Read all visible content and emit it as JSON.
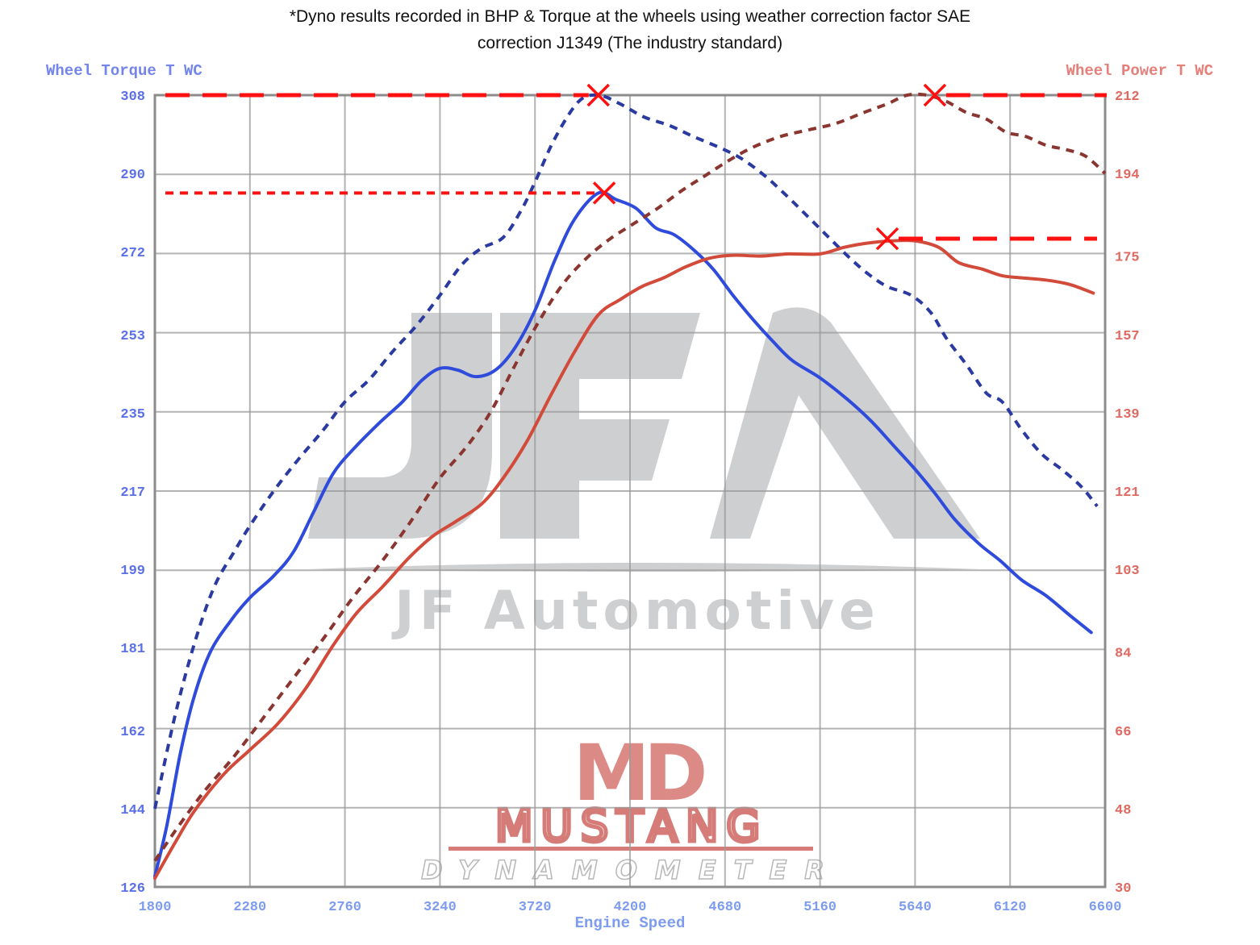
{
  "header": {
    "title_line1": "*Dyno results recorded in BHP & Torque at the wheels using weather correction factor SAE",
    "title_line2": "correction J1349 (The industry standard)"
  },
  "axes": {
    "left_title": "Wheel Torque T WC",
    "right_title": "Wheel Power T WC",
    "x_title": "Engine Speed"
  },
  "watermarks": {
    "jfa_logo": "JFA",
    "jf_text": "JF Automotive",
    "md_logo": "MD",
    "mustang_text": "MUSTANG",
    "dynamometer_text": "DYNAMOMETER"
  },
  "colors": {
    "torque_after": "#2f4bdc",
    "torque_before": "#2a3aa0",
    "power_after": "#d24a3a",
    "power_before": "#8b3530",
    "markers": "#ff1010",
    "grid": "#9a9a9a",
    "left_ticks": "#5b6fe8",
    "right_ticks": "#e06a62",
    "x_ticks": "#7d9bef"
  },
  "chart_data": {
    "type": "line",
    "title": "*Dyno results recorded in BHP & Torque at the wheels using weather correction factor SAE correction J1349 (The industry standard)",
    "xlabel": "Engine Speed",
    "ylabel": "Wheel Torque T WC",
    "y2label": "Wheel Power T WC",
    "xlim": [
      1800,
      6600
    ],
    "ylim": [
      126,
      308
    ],
    "y2lim": [
      30,
      212
    ],
    "x_ticks": [
      1800,
      2280,
      2760,
      3240,
      3720,
      4200,
      4680,
      5160,
      5640,
      6120,
      6600
    ],
    "y_ticks": [
      126,
      144,
      162,
      181,
      199,
      217,
      235,
      253,
      272,
      290,
      308
    ],
    "y2_ticks": [
      30,
      48,
      66,
      84,
      103,
      121,
      139,
      157,
      175,
      194,
      212
    ],
    "grid": true,
    "series": [
      {
        "name": "Wheel Torque (solid, blue)",
        "axis": "left",
        "style": "solid",
        "points": [
          [
            1800,
            128.5
          ],
          [
            1860,
            140
          ],
          [
            1930,
            157
          ],
          [
            2000,
            170
          ],
          [
            2080,
            180
          ],
          [
            2180,
            187
          ],
          [
            2280,
            192.5
          ],
          [
            2400,
            197.5
          ],
          [
            2500,
            203
          ],
          [
            2600,
            212
          ],
          [
            2700,
            221
          ],
          [
            2800,
            226.5
          ],
          [
            2930,
            232.5
          ],
          [
            3050,
            237.5
          ],
          [
            3150,
            242.5
          ],
          [
            3240,
            245.2
          ],
          [
            3330,
            244.8
          ],
          [
            3420,
            243.3
          ],
          [
            3520,
            244.8
          ],
          [
            3620,
            250
          ],
          [
            3720,
            258.5
          ],
          [
            3820,
            270
          ],
          [
            3920,
            279.5
          ],
          [
            4040,
            285.5
          ],
          [
            4130,
            284
          ],
          [
            4230,
            282
          ],
          [
            4330,
            277.5
          ],
          [
            4420,
            276
          ],
          [
            4520,
            272.5
          ],
          [
            4620,
            268
          ],
          [
            4720,
            262
          ],
          [
            4820,
            256.5
          ],
          [
            4920,
            251.5
          ],
          [
            5020,
            247
          ],
          [
            5160,
            243
          ],
          [
            5300,
            238
          ],
          [
            5420,
            233
          ],
          [
            5540,
            227
          ],
          [
            5640,
            222
          ],
          [
            5740,
            216.5
          ],
          [
            5840,
            210.5
          ],
          [
            5960,
            205
          ],
          [
            6070,
            201
          ],
          [
            6180,
            196.5
          ],
          [
            6300,
            193
          ],
          [
            6420,
            188.5
          ],
          [
            6530,
            184.5
          ]
        ]
      },
      {
        "name": "Wheel Torque (dashed, dark blue)",
        "axis": "left",
        "style": "dashed",
        "points": [
          [
            1800,
            144
          ],
          [
            1900,
            165
          ],
          [
            2000,
            182
          ],
          [
            2100,
            195
          ],
          [
            2200,
            203
          ],
          [
            2280,
            209
          ],
          [
            2400,
            217
          ],
          [
            2520,
            224
          ],
          [
            2650,
            231
          ],
          [
            2760,
            237.5
          ],
          [
            2880,
            242.5
          ],
          [
            3000,
            249
          ],
          [
            3120,
            255
          ],
          [
            3240,
            262
          ],
          [
            3350,
            269
          ],
          [
            3450,
            272.8
          ],
          [
            3560,
            275.3
          ],
          [
            3650,
            281.5
          ],
          [
            3720,
            288
          ],
          [
            3820,
            298
          ],
          [
            3940,
            306.5
          ],
          [
            4040,
            308
          ],
          [
            4150,
            306
          ],
          [
            4270,
            303
          ],
          [
            4400,
            301
          ],
          [
            4520,
            298.5
          ],
          [
            4650,
            296
          ],
          [
            4760,
            293.5
          ],
          [
            4880,
            289.5
          ],
          [
            5000,
            284.5
          ],
          [
            5100,
            280
          ],
          [
            5200,
            275.5
          ],
          [
            5300,
            271
          ],
          [
            5400,
            267
          ],
          [
            5500,
            264
          ],
          [
            5620,
            262
          ],
          [
            5720,
            258
          ],
          [
            5800,
            252
          ],
          [
            5900,
            246
          ],
          [
            6000,
            239.5
          ],
          [
            6080,
            237.5
          ],
          [
            6180,
            231
          ],
          [
            6280,
            225.5
          ],
          [
            6380,
            222
          ],
          [
            6480,
            218
          ],
          [
            6560,
            213.5
          ]
        ]
      },
      {
        "name": "Wheel Power (solid, red)",
        "axis": "right",
        "style": "solid",
        "points": [
          [
            1800,
            32
          ],
          [
            1900,
            40
          ],
          [
            2000,
            47.5
          ],
          [
            2150,
            56
          ],
          [
            2280,
            61.5
          ],
          [
            2420,
            67.5
          ],
          [
            2560,
            75.5
          ],
          [
            2700,
            85.5
          ],
          [
            2820,
            93
          ],
          [
            2950,
            99
          ],
          [
            3080,
            105.5
          ],
          [
            3200,
            110.5
          ],
          [
            3320,
            114
          ],
          [
            3450,
            118
          ],
          [
            3560,
            124
          ],
          [
            3680,
            132.5
          ],
          [
            3800,
            143
          ],
          [
            3920,
            153
          ],
          [
            4040,
            161.5
          ],
          [
            4150,
            165
          ],
          [
            4260,
            168
          ],
          [
            4370,
            170
          ],
          [
            4480,
            172.5
          ],
          [
            4600,
            174.5
          ],
          [
            4720,
            175.2
          ],
          [
            4860,
            175
          ],
          [
            5000,
            175.5
          ],
          [
            5160,
            175.5
          ],
          [
            5280,
            177
          ],
          [
            5400,
            178
          ],
          [
            5520,
            178.5
          ],
          [
            5640,
            178.5
          ],
          [
            5760,
            177
          ],
          [
            5860,
            173.5
          ],
          [
            5980,
            172
          ],
          [
            6080,
            170.5
          ],
          [
            6180,
            170
          ],
          [
            6300,
            169.5
          ],
          [
            6420,
            168.5
          ],
          [
            6540,
            166.5
          ]
        ]
      },
      {
        "name": "Wheel Power (dashed, dark red)",
        "axis": "right",
        "style": "dashed",
        "points": [
          [
            1800,
            36
          ],
          [
            1920,
            44
          ],
          [
            2050,
            52
          ],
          [
            2200,
            60
          ],
          [
            2350,
            69
          ],
          [
            2500,
            78
          ],
          [
            2650,
            87
          ],
          [
            2800,
            96.5
          ],
          [
            2950,
            105
          ],
          [
            3100,
            114.5
          ],
          [
            3240,
            124
          ],
          [
            3380,
            131.5
          ],
          [
            3500,
            139.5
          ],
          [
            3620,
            150
          ],
          [
            3740,
            160
          ],
          [
            3860,
            168.5
          ],
          [
            3980,
            174.5
          ],
          [
            4100,
            179
          ],
          [
            4220,
            182.5
          ],
          [
            4340,
            186
          ],
          [
            4460,
            190
          ],
          [
            4580,
            193.5
          ],
          [
            4700,
            197
          ],
          [
            4820,
            200
          ],
          [
            4960,
            202.5
          ],
          [
            5100,
            204
          ],
          [
            5240,
            205.5
          ],
          [
            5380,
            208
          ],
          [
            5500,
            210
          ],
          [
            5600,
            212
          ],
          [
            5700,
            212
          ],
          [
            5800,
            210.5
          ],
          [
            5900,
            208
          ],
          [
            6000,
            206.5
          ],
          [
            6100,
            203.5
          ],
          [
            6200,
            202.5
          ],
          [
            6300,
            200.5
          ],
          [
            6400,
            199.5
          ],
          [
            6500,
            198
          ],
          [
            6600,
            194
          ]
        ]
      }
    ],
    "annotations": [
      {
        "type": "peak-marker",
        "series": "Wheel Torque (dashed, dark blue)",
        "rpm": 4040,
        "value": 308,
        "hline_to": "left",
        "line_style": "long-dash"
      },
      {
        "type": "peak-marker",
        "series": "Wheel Torque (solid, blue)",
        "rpm": 4070,
        "value": 285.5,
        "hline_to": "left",
        "line_style": "short-dash"
      },
      {
        "type": "peak-marker",
        "series": "Wheel Power (dashed, dark red)",
        "rpm": 5740,
        "value": 212,
        "hline_to": "right",
        "line_style": "long-dash"
      },
      {
        "type": "peak-marker",
        "series": "Wheel Power (solid, red)",
        "rpm": 5500,
        "value": 179,
        "hline_to": "right",
        "line_style": "long-dash"
      }
    ]
  }
}
